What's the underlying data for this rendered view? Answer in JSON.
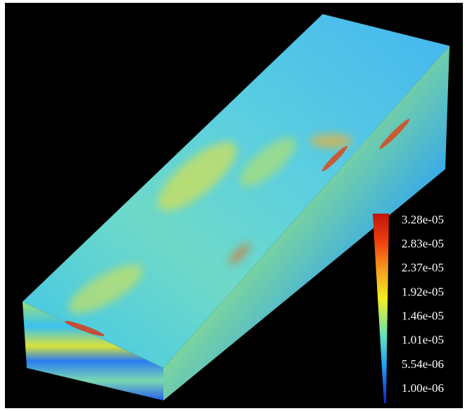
{
  "colorbar": {
    "labels": [
      "3.28e-05",
      "2.83e-05",
      "2.37e-05",
      "1.92e-05",
      "1.46e-05",
      "1.01e-05",
      "5.54e-06",
      "1.00e-06"
    ]
  }
}
